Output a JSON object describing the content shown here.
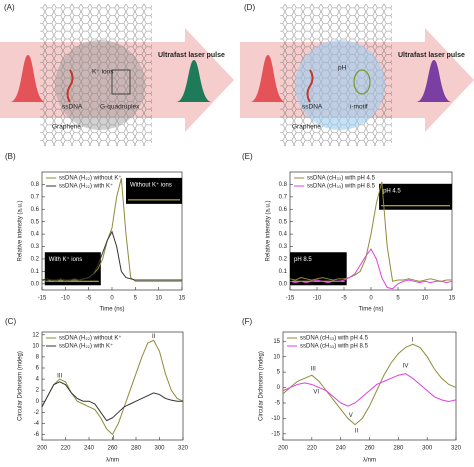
{
  "diagrams": [
    {
      "label": "(A)",
      "ion": "K⁺ ions",
      "ssdna": "ssDNA",
      "structure": "G-quadruplex",
      "graphene": "Graphene",
      "laser": "Ultrafast laser pulse"
    },
    {
      "label": "(D)",
      "ion": "pH",
      "ssdna": "ssDNA",
      "structure": "i-motif",
      "graphene": "Graphene",
      "laser": "Ultrafast laser pulse"
    }
  ],
  "chart_data": [
    {
      "type": "line",
      "label": "(B)",
      "xlabel": "Time (ns)",
      "ylabel": "Relative intensity (a.u.)",
      "x": [
        -15,
        -14,
        -13,
        -12,
        -11,
        -10,
        -9,
        -8,
        -7,
        -6,
        -5,
        -4,
        -3,
        -2,
        -1,
        0,
        1,
        2,
        3,
        4,
        5,
        6,
        7,
        8,
        9,
        10,
        11,
        12,
        13,
        14,
        15
      ],
      "series": [
        {
          "name": "ssDNA (H₂₂) without K⁺",
          "color": "#8c8c3c",
          "values": [
            0.03,
            0.02,
            0.03,
            0.02,
            0.03,
            0.02,
            0.03,
            0.03,
            0.03,
            0.04,
            0.05,
            0.08,
            0.12,
            0.2,
            0.35,
            0.45,
            0.7,
            0.85,
            0.4,
            0.05,
            0.02,
            0.02,
            0.02,
            0.02,
            0.02,
            0.02,
            0.02,
            0.02,
            0.02,
            0.02,
            0.02
          ]
        },
        {
          "name": "ssDNA (H₂₂) with K⁺",
          "color": "#333333",
          "values": [
            0.03,
            0.04,
            0.03,
            0.03,
            0.04,
            0.03,
            0.03,
            0.04,
            0.03,
            0.04,
            0.05,
            0.08,
            0.15,
            0.25,
            0.35,
            0.42,
            0.3,
            0.1,
            0.05,
            0.04,
            0.03,
            0.03,
            0.03,
            0.03,
            0.03,
            0.03,
            0.03,
            0.03,
            0.03,
            0.03,
            0.03
          ]
        }
      ],
      "xlim": [
        -15,
        15
      ],
      "xticks": [
        -15,
        -10,
        -5,
        0,
        5,
        10,
        15
      ],
      "ylim": [
        -0.05,
        0.9
      ],
      "yticks": [
        {
          "value": 0,
          "label": "0.0"
        },
        0.1,
        0.2,
        0.3,
        0.4,
        0.5,
        0.6,
        0.7,
        0.8
      ],
      "insets": [
        "Without K⁺ ions",
        "With K⁺ ions"
      ],
      "annotations": []
    },
    {
      "type": "line",
      "label": "(E)",
      "xlabel": "Time (ns)",
      "ylabel": "Relative intensity (a.u.)",
      "x": [
        -15,
        -14,
        -13,
        -12,
        -11,
        -10,
        -9,
        -8,
        -7,
        -6,
        -5,
        -4,
        -3,
        -2,
        -1,
        0,
        1,
        2,
        3,
        4,
        5,
        6,
        7,
        8,
        9,
        10,
        11,
        12,
        13,
        14,
        15
      ],
      "series": [
        {
          "name": "ssDNA (cH₃₃) with pH 4.5",
          "color": "#8c8c3c",
          "values": [
            0.04,
            0.03,
            0.05,
            0.04,
            0.03,
            0.04,
            0.05,
            0.04,
            0.03,
            0.04,
            0.04,
            0.05,
            0.07,
            0.1,
            0.2,
            0.4,
            0.65,
            0.82,
            0.3,
            0.02,
            0.03,
            0.03,
            0.04,
            0.03,
            0.02,
            0.03,
            0.04,
            0.03,
            0.02,
            0.03,
            0.03
          ]
        },
        {
          "name": "ssDNA (cH₃₃) with pH 8.5",
          "color": "#e040e0",
          "values": [
            0.02,
            0.01,
            0.02,
            0.01,
            0.02,
            0.03,
            0.02,
            0.01,
            0.02,
            0.02,
            0.03,
            0.05,
            0.08,
            0.15,
            0.22,
            0.28,
            0.2,
            0.05,
            -0.03,
            -0.04,
            0.0,
            0.02,
            0.03,
            0.02,
            0.01,
            0.02,
            0.01,
            0.02,
            0.02,
            0.01,
            0.02
          ]
        }
      ],
      "xlim": [
        -15,
        15
      ],
      "xticks": [
        -15,
        -10,
        -5,
        0,
        5,
        10,
        15
      ],
      "ylim": [
        -0.05,
        0.9
      ],
      "yticks": [
        {
          "value": 0,
          "label": "0.0"
        },
        0.1,
        0.2,
        0.3,
        0.4,
        0.5,
        0.6,
        0.7,
        0.8
      ],
      "insets": [
        "pH 4.5",
        "pH 8.5"
      ],
      "annotations": []
    },
    {
      "type": "line",
      "label": "(C)",
      "xlabel": "λ/nm",
      "ylabel": "Circular Dichroism (mdeg)",
      "x": [
        200,
        205,
        210,
        215,
        220,
        225,
        230,
        235,
        240,
        245,
        250,
        255,
        260,
        265,
        270,
        275,
        280,
        285,
        290,
        295,
        300,
        305,
        310,
        315,
        320
      ],
      "series": [
        {
          "name": "ssDNA (H₂₂) without K⁺",
          "color": "#8c8c3c",
          "values": [
            -1,
            1,
            3,
            4,
            3.5,
            1.5,
            0,
            -0.5,
            -1,
            -1.5,
            -3,
            -5,
            -6,
            -4,
            -1,
            2,
            5,
            8,
            10.5,
            11,
            9,
            5,
            2,
            0.5,
            0
          ]
        },
        {
          "name": "ssDNA (H₂₂) with K⁺",
          "color": "#333333",
          "values": [
            -1,
            1,
            3,
            3.5,
            3,
            1.5,
            0.5,
            0,
            0,
            -0.5,
            -2,
            -3.5,
            -3,
            -2,
            -1,
            -0.5,
            0,
            0.5,
            1,
            1.5,
            1.2,
            0.5,
            0.2,
            0,
            0
          ]
        }
      ],
      "xlim": [
        200,
        320
      ],
      "xticks": [
        200,
        220,
        240,
        260,
        280,
        300,
        320
      ],
      "ylim": [
        -7,
        12.5
      ],
      "yticks": [
        -6,
        -4,
        -2,
        0,
        2,
        4,
        6,
        8,
        10,
        12
      ],
      "insets": [],
      "annotations": [
        {
          "text": "III",
          "x": 215,
          "y": 4.6
        },
        {
          "text": "I",
          "x": 261,
          "y": -6.6
        },
        {
          "text": "II",
          "x": 295,
          "y": 11.7
        }
      ]
    },
    {
      "type": "line",
      "label": "(F)",
      "xlabel": "λ/nm",
      "ylabel": "Circular Dichroism (mdeg)",
      "x": [
        200,
        205,
        210,
        215,
        220,
        225,
        230,
        235,
        240,
        245,
        250,
        255,
        260,
        265,
        270,
        275,
        280,
        285,
        290,
        295,
        300,
        305,
        310,
        315,
        320
      ],
      "series": [
        {
          "name": "ssDNA (cH₃₃) with pH 4.5",
          "color": "#8c8c3c",
          "values": [
            -2,
            0,
            2,
            3,
            4,
            2,
            -1,
            -4,
            -7,
            -10,
            -12,
            -10,
            -6,
            -1,
            4,
            8,
            11,
            13,
            14,
            13,
            10,
            6,
            3,
            1,
            0
          ]
        },
        {
          "name": "ssDNA (cH₃₃) with pH 8.5",
          "color": "#e040e0",
          "values": [
            -1,
            0,
            1,
            1.5,
            1,
            0,
            -1,
            -3,
            -5,
            -6,
            -5,
            -3,
            -1,
            1,
            2,
            3,
            4,
            4.5,
            3,
            1,
            -1,
            -3,
            -4,
            -4.5,
            -4
          ]
        }
      ],
      "xlim": [
        200,
        320
      ],
      "xticks": [
        200,
        220,
        240,
        260,
        280,
        300,
        320
      ],
      "ylim": [
        -17,
        18
      ],
      "yticks": [
        -15,
        -10,
        -5,
        0,
        5,
        10,
        15
      ],
      "insets": [],
      "annotations": [
        {
          "text": "III",
          "x": 221,
          "y": 6
        },
        {
          "text": "VI",
          "x": 223,
          "y": -1.5
        },
        {
          "text": "V",
          "x": 247,
          "y": -9
        },
        {
          "text": "II",
          "x": 251,
          "y": -14
        },
        {
          "text": "IV",
          "x": 285,
          "y": 7
        },
        {
          "text": "I",
          "x": 290,
          "y": 15.5
        }
      ]
    }
  ]
}
